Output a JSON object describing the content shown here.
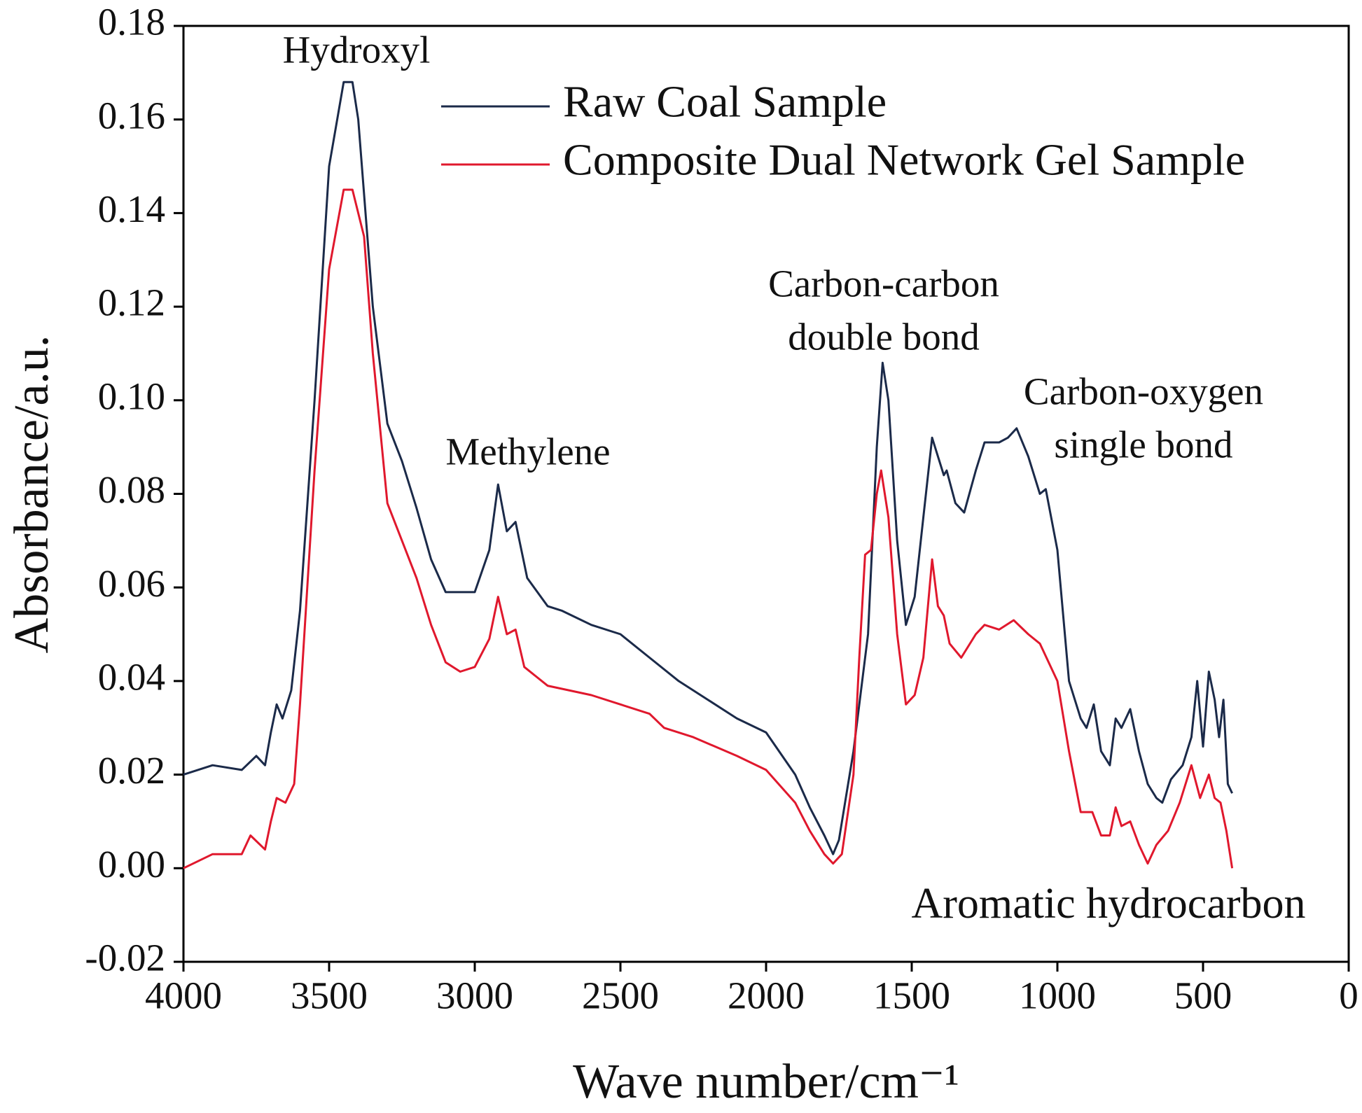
{
  "chart_data": {
    "type": "line",
    "xlabel": "Wave number/cm⁻¹",
    "ylabel": "Absorbance/a.u.",
    "xlim": [
      4000,
      0
    ],
    "xticks": [
      4000,
      3500,
      3000,
      2500,
      2000,
      1500,
      1000,
      500,
      0
    ],
    "ylim": [
      -0.02,
      0.18
    ],
    "yticks": [
      -0.02,
      {
        "value": 0,
        "label": "0.00"
      },
      0.02,
      0.04,
      0.06,
      0.08,
      {
        "value": 0.1,
        "label": "0.10"
      },
      0.12,
      0.14,
      0.16,
      0.18
    ],
    "legend": "upper right",
    "annotations": [
      [
        "Hydroxyl"
      ],
      [
        "Methylene"
      ],
      [
        "Carbon-carbon",
        "double bond"
      ],
      [
        "Carbon-oxygen",
        "single bond"
      ],
      [
        "Aromatic hydrocarbon"
      ]
    ],
    "series": [
      {
        "name": "Raw Coal Sample",
        "color": "#1b2a49",
        "x": [
          4000,
          3900,
          3800,
          3750,
          3720,
          3700,
          3680,
          3660,
          3630,
          3600,
          3550,
          3500,
          3450,
          3420,
          3400,
          3350,
          3300,
          3250,
          3200,
          3150,
          3100,
          3050,
          3000,
          2950,
          2920,
          2890,
          2860,
          2820,
          2750,
          2700,
          2600,
          2500,
          2400,
          2300,
          2200,
          2100,
          2000,
          1900,
          1850,
          1800,
          1770,
          1750,
          1700,
          1680,
          1650,
          1620,
          1600,
          1580,
          1550,
          1520,
          1490,
          1460,
          1430,
          1410,
          1390,
          1380,
          1350,
          1320,
          1280,
          1250,
          1200,
          1170,
          1140,
          1100,
          1060,
          1040,
          1000,
          960,
          920,
          900,
          875,
          850,
          820,
          800,
          780,
          750,
          720,
          690,
          660,
          640,
          610,
          570,
          540,
          520,
          500,
          480,
          460,
          445,
          430,
          415,
          400
        ],
        "values": [
          0.02,
          0.022,
          0.021,
          0.024,
          0.022,
          0.029,
          0.035,
          0.032,
          0.038,
          0.055,
          0.1,
          0.15,
          0.168,
          0.168,
          0.16,
          0.12,
          0.095,
          0.087,
          0.077,
          0.066,
          0.059,
          0.059,
          0.059,
          0.068,
          0.082,
          0.072,
          0.074,
          0.062,
          0.056,
          0.055,
          0.052,
          0.05,
          0.045,
          0.04,
          0.036,
          0.032,
          0.029,
          0.02,
          0.013,
          0.007,
          0.003,
          0.006,
          0.025,
          0.035,
          0.05,
          0.09,
          0.108,
          0.1,
          0.07,
          0.052,
          0.058,
          0.075,
          0.092,
          0.088,
          0.084,
          0.085,
          0.078,
          0.076,
          0.085,
          0.091,
          0.091,
          0.092,
          0.094,
          0.088,
          0.08,
          0.081,
          0.068,
          0.04,
          0.032,
          0.03,
          0.035,
          0.025,
          0.022,
          0.032,
          0.03,
          0.034,
          0.025,
          0.018,
          0.015,
          0.014,
          0.019,
          0.022,
          0.028,
          0.04,
          0.026,
          0.042,
          0.036,
          0.028,
          0.036,
          0.018,
          0.016
        ]
      },
      {
        "name": "Composite Dual Network Gel Sample",
        "color": "#e0182d",
        "x": [
          4000,
          3900,
          3800,
          3770,
          3720,
          3700,
          3680,
          3650,
          3620,
          3600,
          3550,
          3500,
          3450,
          3420,
          3380,
          3350,
          3300,
          3250,
          3200,
          3150,
          3100,
          3050,
          3000,
          2950,
          2920,
          2890,
          2860,
          2830,
          2750,
          2600,
          2500,
          2400,
          2350,
          2250,
          2100,
          2000,
          1900,
          1850,
          1800,
          1770,
          1740,
          1700,
          1680,
          1660,
          1640,
          1620,
          1605,
          1580,
          1550,
          1520,
          1490,
          1460,
          1430,
          1410,
          1390,
          1370,
          1330,
          1280,
          1250,
          1200,
          1150,
          1100,
          1060,
          1000,
          960,
          920,
          880,
          850,
          820,
          800,
          780,
          750,
          720,
          690,
          660,
          620,
          580,
          540,
          510,
          480,
          460,
          440,
          420,
          400
        ],
        "values": [
          0.0,
          0.003,
          0.003,
          0.007,
          0.004,
          0.01,
          0.015,
          0.014,
          0.018,
          0.035,
          0.085,
          0.128,
          0.145,
          0.145,
          0.135,
          0.11,
          0.078,
          0.07,
          0.062,
          0.052,
          0.044,
          0.042,
          0.043,
          0.049,
          0.058,
          0.05,
          0.051,
          0.043,
          0.039,
          0.037,
          0.035,
          0.033,
          0.03,
          0.028,
          0.024,
          0.021,
          0.014,
          0.008,
          0.003,
          0.001,
          0.003,
          0.02,
          0.045,
          0.067,
          0.068,
          0.08,
          0.085,
          0.075,
          0.05,
          0.035,
          0.037,
          0.045,
          0.066,
          0.056,
          0.054,
          0.048,
          0.045,
          0.05,
          0.052,
          0.051,
          0.053,
          0.05,
          0.048,
          0.04,
          0.025,
          0.012,
          0.012,
          0.007,
          0.007,
          0.013,
          0.009,
          0.01,
          0.005,
          0.001,
          0.005,
          0.008,
          0.014,
          0.022,
          0.015,
          0.02,
          0.015,
          0.014,
          0.008,
          0.0
        ]
      }
    ]
  }
}
